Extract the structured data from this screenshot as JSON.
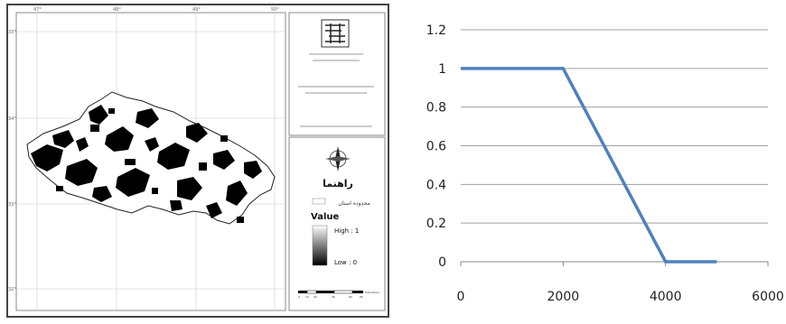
{
  "map": {
    "lon_labels": [
      "47°",
      "48°",
      "49°",
      "50°"
    ],
    "lat_labels": [
      "33°",
      "34°",
      "33°",
      "32°"
    ],
    "legend": {
      "heading": "راهنما",
      "boundary_label": "محدوده استان",
      "value_title": "Value",
      "high_label": "High : 1",
      "low_label": "Low : 0"
    },
    "scalebar_labels": [
      "0",
      "10",
      "20",
      "40",
      "60",
      "80",
      "Kilometers"
    ]
  },
  "chart_data": {
    "type": "line",
    "x": [
      0,
      2000,
      4000,
      5000
    ],
    "y": [
      1,
      1,
      0,
      0
    ],
    "xlim": [
      0,
      6000
    ],
    "ylim": [
      0,
      1.2
    ],
    "xticks": [
      "0",
      "2000",
      "4000",
      "6000"
    ],
    "yticks": [
      "0",
      "0.2",
      "0.4",
      "0.6",
      "0.8",
      "1",
      "1.2"
    ],
    "grid": "horizontal",
    "series_color": "#4f81bd",
    "title": "",
    "xlabel": "",
    "ylabel": ""
  }
}
